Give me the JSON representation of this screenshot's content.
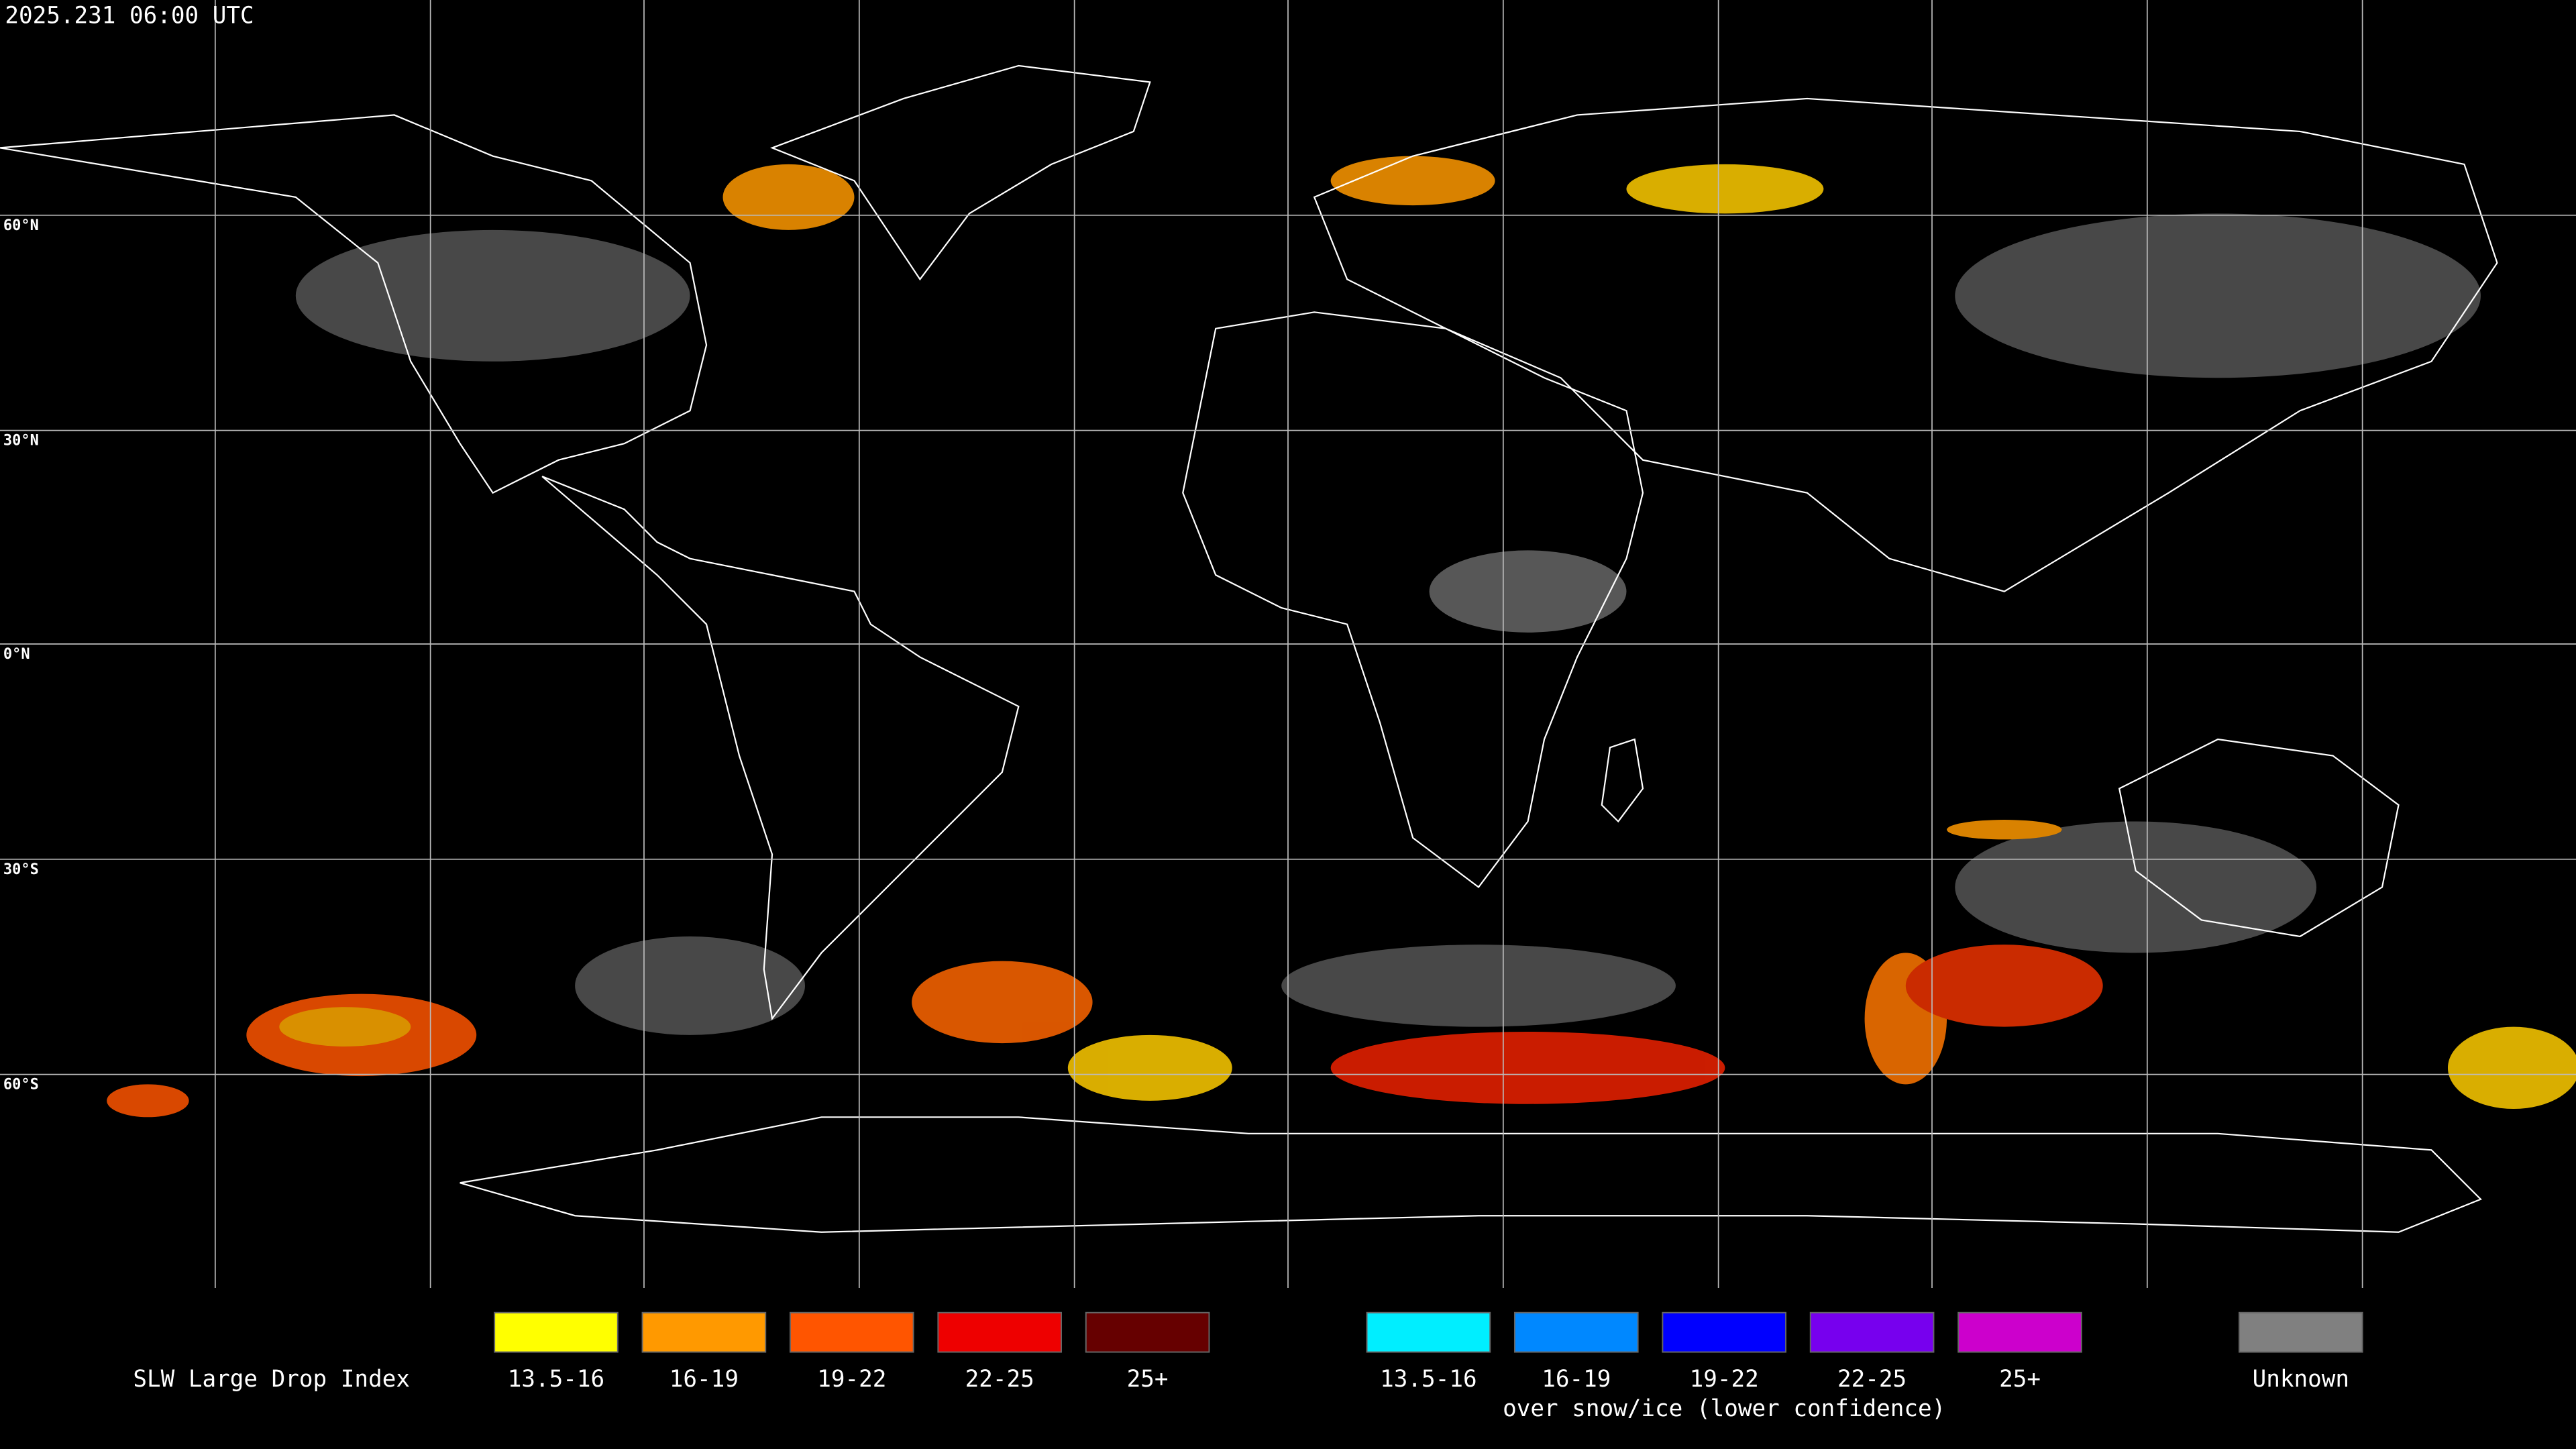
{
  "header": {
    "timestamp": "2025.231 06:00 UTC"
  },
  "map": {
    "lat_labels": [
      "60°N",
      "30°N",
      "0°N",
      "30°S",
      "60°S"
    ]
  },
  "legend": {
    "title": "SLW Large Drop Index",
    "groups": [
      {
        "items": [
          {
            "label": "13.5-16",
            "color": "#ffff00"
          },
          {
            "label": "16-19",
            "color": "#ff9900"
          },
          {
            "label": "19-22",
            "color": "#ff5500"
          },
          {
            "label": "22-25",
            "color": "#ee0000"
          },
          {
            "label": "25+",
            "color": "#660000"
          }
        ]
      },
      {
        "items": [
          {
            "label": "13.5-16",
            "color": "#00eeff"
          },
          {
            "label": "16-19",
            "color": "#0088ff"
          },
          {
            "label": "19-22",
            "color": "#0000ff"
          },
          {
            "label": "22-25",
            "color": "#7700ee"
          },
          {
            "label": "25+",
            "color": "#cc00cc"
          }
        ],
        "caption": "over snow/ice (lower confidence)"
      },
      {
        "items": [
          {
            "label": "Unknown",
            "color": "#808080"
          }
        ]
      }
    ]
  }
}
